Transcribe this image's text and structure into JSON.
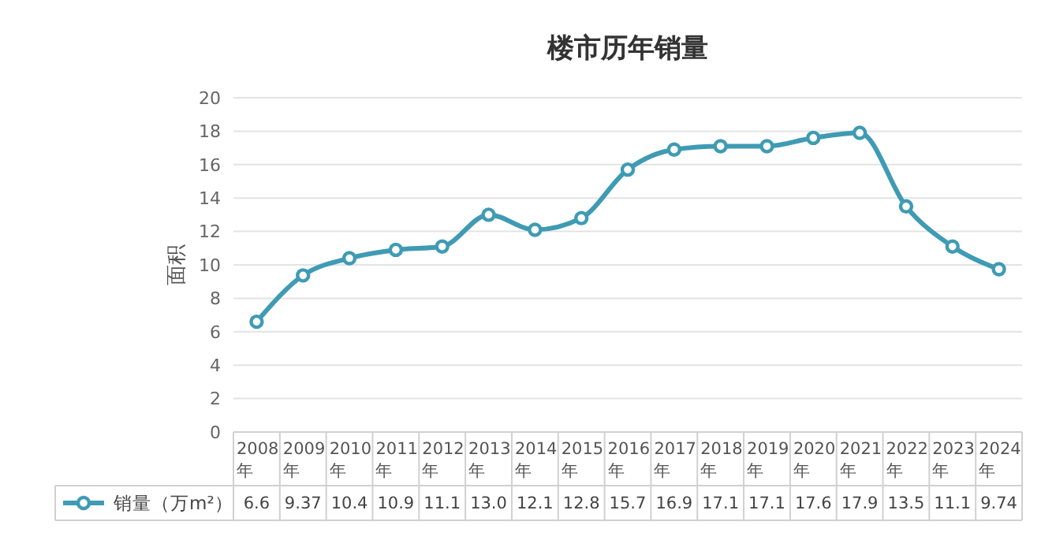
{
  "chart_data": {
    "type": "line",
    "title": "楼市历年销量",
    "ylabel": "面积",
    "categories": [
      "2008年",
      "2009年",
      "2010年",
      "2011年",
      "2012年",
      "2013年",
      "2014年",
      "2015年",
      "2016年",
      "2017年",
      "2018年",
      "2019年",
      "2020年",
      "2021年",
      "2022年",
      "2023年",
      "2024年"
    ],
    "series": [
      {
        "name": "销量（万m²）",
        "color": "#3f9bb4",
        "values": [
          6.6,
          9.37,
          10.4,
          10.9,
          11.1,
          13.0,
          12.1,
          12.8,
          15.7,
          16.9,
          17.1,
          17.1,
          17.6,
          17.9,
          13.5,
          11.1,
          9.74
        ],
        "value_labels": [
          "6.6",
          "9.37",
          "10.4",
          "10.9",
          "11.1",
          "13.0",
          "12.1",
          "12.8",
          "15.7",
          "16.9",
          "17.1",
          "17.1",
          "17.6",
          "17.9",
          "13.5",
          "11.1",
          "9.74"
        ]
      }
    ],
    "ylim": [
      0,
      20
    ],
    "yticks": [
      0,
      2,
      4,
      6,
      8,
      10,
      12,
      14,
      16,
      18,
      20
    ],
    "grid": "y",
    "marker": "circle",
    "line_style": "solid",
    "legend": "bottom left"
  }
}
